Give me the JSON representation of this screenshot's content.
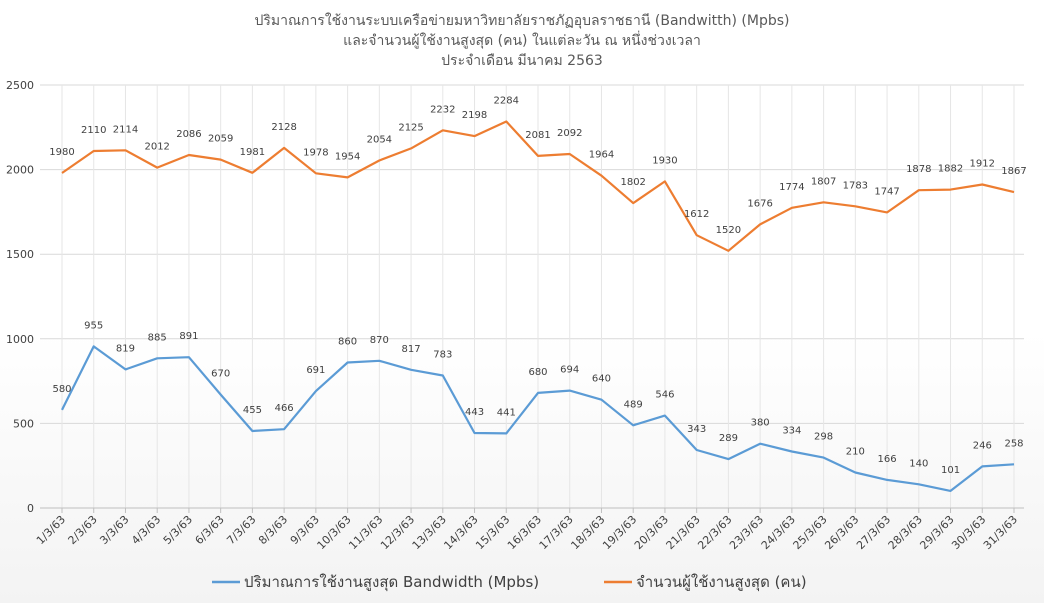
{
  "chart_data": {
    "type": "line",
    "title_lines": [
      "ปริมาณการใช้งานระบบเครือข่ายมหาวิทยาลัยราชภัฏอุบลราชธานี (Bandwitth) (Mpbs)",
      "และจำนวนผู้ใช้งานสูงสุด (คน) ในแต่ละวัน ณ หนึ่งช่วงเวลา",
      "ประจำเดือน มีนาคม 2563"
    ],
    "categories": [
      "1/3/63",
      "2/3/63",
      "3/3/63",
      "4/3/63",
      "5/3/63",
      "6/3/63",
      "7/3/63",
      "8/3/63",
      "9/3/63",
      "10/3/63",
      "11/3/63",
      "12/3/63",
      "13/3/63",
      "14/3/63",
      "15/3/63",
      "16/3/63",
      "17/3/63",
      "18/3/63",
      "19/3/63",
      "20/3/63",
      "21/3/63",
      "22/3/63",
      "23/3/63",
      "24/3/63",
      "25/3/63",
      "26/3/63",
      "27/3/63",
      "28/3/63",
      "29/3/63",
      "30/3/63",
      "31/3/63"
    ],
    "ylim": [
      0,
      2500
    ],
    "yticks": [
      "0",
      "500",
      "1000",
      "1500",
      "2000",
      "2500"
    ],
    "grid": true,
    "legend_position": "bottom",
    "series": [
      {
        "name": "ปริมาณการใช้งานสูงสุด Bandwidth (Mpbs)",
        "color": "#5b9bd5",
        "values": [
          580,
          955,
          819,
          885,
          891,
          670,
          455,
          466,
          691,
          860,
          870,
          817,
          783,
          443,
          441,
          680,
          694,
          640,
          489,
          546,
          343,
          289,
          380,
          334,
          298,
          210,
          166,
          140,
          101,
          246,
          258
        ]
      },
      {
        "name": "จำนวนผู้ใช้งานสูงสุด (คน)",
        "color": "#ed7d31",
        "values": [
          1980,
          2110,
          2114,
          2012,
          2086,
          2059,
          1981,
          2128,
          1978,
          1954,
          2054,
          2125,
          2232,
          2198,
          2284,
          2081,
          2092,
          1964,
          1802,
          1930,
          1612,
          1520,
          1676,
          1774,
          1807,
          1783,
          1747,
          1878,
          1882,
          1912,
          1867
        ]
      }
    ]
  }
}
